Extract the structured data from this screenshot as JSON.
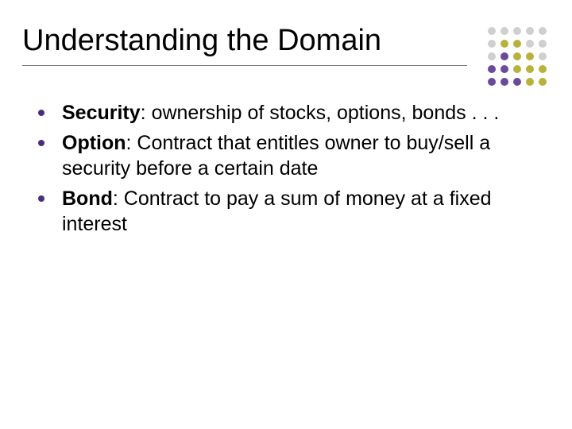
{
  "title": "Understanding the Domain",
  "title_fontsize": 38,
  "title_color": "#000000",
  "rule_color": "#777777",
  "background_color": "#ffffff",
  "bullet_color": "#4a2e7a",
  "body_fontsize": 25,
  "body_color": "#000000",
  "bullets": [
    {
      "term": "Security",
      "def": ": ownership of stocks, options, bonds . . ."
    },
    {
      "term": "Option",
      "def": ": Contract that entitles owner to buy/sell a security before a certain date"
    },
    {
      "term": "Bond",
      "def": ": Contract to pay a sum of money at a fixed interest"
    }
  ],
  "dotgrid": {
    "deco_purple": "#6a4a9a",
    "deco_olive": "#b8b23a",
    "deco_gray": "#cfcfcf",
    "rows": [
      [
        "deco_gray",
        "deco_gray",
        "deco_gray",
        "deco_gray",
        "deco_gray"
      ],
      [
        "deco_gray",
        "deco_olive",
        "deco_olive",
        "deco_gray",
        "deco_gray"
      ],
      [
        "deco_gray",
        "deco_purple",
        "deco_olive",
        "deco_olive",
        "deco_gray"
      ],
      [
        "deco_purple",
        "deco_purple",
        "deco_olive",
        "deco_olive",
        "deco_olive"
      ],
      [
        "deco_purple",
        "deco_purple",
        "deco_purple",
        "deco_olive",
        "deco_olive"
      ]
    ]
  }
}
